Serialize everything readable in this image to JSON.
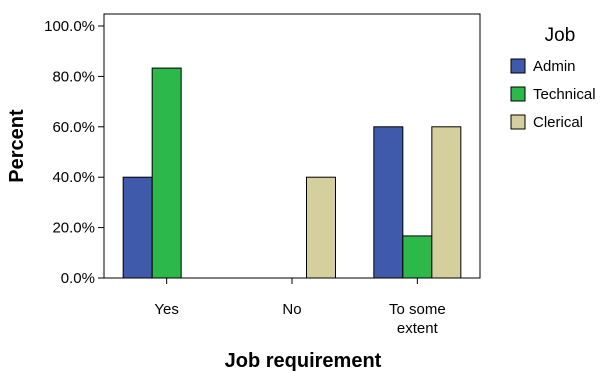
{
  "chart_data": {
    "type": "bar",
    "xlabel": "Job requirement",
    "ylabel": "Percent",
    "categories": [
      [
        "Yes"
      ],
      [
        "No"
      ],
      [
        "To some",
        "extent"
      ]
    ],
    "y_ticks": [
      "0.0%",
      "20.0%",
      "40.0%",
      "60.0%",
      "80.0%",
      "100.0%"
    ],
    "ylim": [
      0,
      100
    ],
    "grid": false,
    "legend": {
      "title": "Job",
      "placement": "right"
    },
    "series": [
      {
        "name": "Admin",
        "color": "#3f5aab",
        "values": [
          40,
          0,
          60
        ]
      },
      {
        "name": "Technical",
        "color": "#2db84a",
        "values": [
          83.3,
          0,
          16.7
        ]
      },
      {
        "name": "Clerical",
        "color": "#d5cf9e",
        "values": [
          0,
          40,
          60
        ]
      }
    ]
  }
}
